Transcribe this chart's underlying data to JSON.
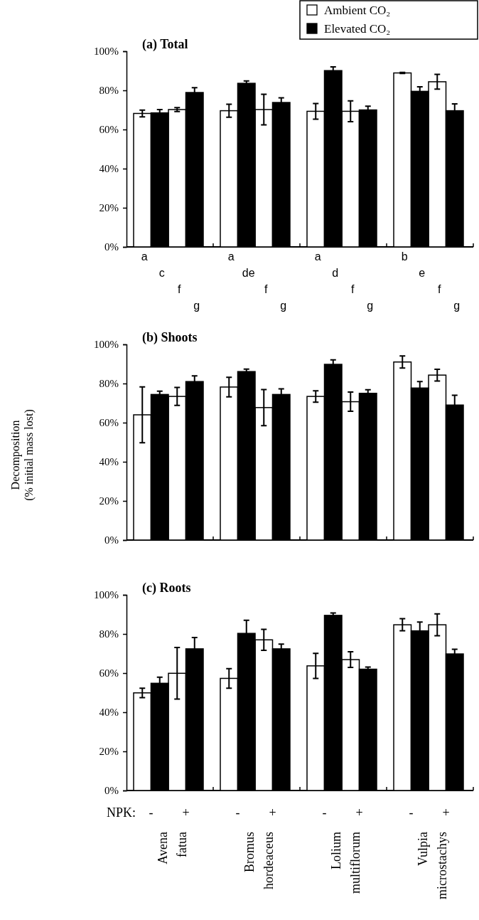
{
  "chart_data": [
    {
      "type": "bar",
      "title": "(a) Total",
      "categories": [
        null,
        null,
        null,
        null,
        null,
        null,
        null,
        null
      ],
      "tick_labels": "y",
      "legend": "top right",
      "ylim": [
        0,
        100
      ],
      "yticks": [
        {
          "value": 0,
          "label": "0%"
        },
        {
          "value": 20,
          "label": "20%"
        },
        {
          "value": 40,
          "label": "40%"
        },
        {
          "value": 60,
          "label": "60%"
        },
        {
          "value": 80,
          "label": "80%"
        },
        {
          "value": 100,
          "label": "100%"
        }
      ],
      "series": [
        {
          "name": "Ambient CO₂",
          "color": "#ffffff",
          "values": [
            68.2,
            70.2,
            69.6,
            70.2,
            69.3,
            69.3,
            88.9,
            84.4
          ],
          "errors": [
            1.7,
            1,
            3.3,
            7.8,
            4,
            5.3,
            0.3,
            3.8
          ]
        },
        {
          "name": "Elevated CO₂",
          "color": "#000000",
          "values": [
            68.5,
            78.9,
            83.6,
            73.8,
            90.1,
            70.0,
            79.5,
            69.6
          ],
          "errors": [
            1.7,
            2.5,
            1.2,
            2.4,
            1.9,
            1.9,
            2.3,
            3.5
          ]
        }
      ],
      "annotations": [
        "a",
        "c",
        "f",
        "g",
        "a",
        "de",
        "f",
        "g",
        "a",
        "d",
        "f",
        "g",
        "b",
        "e",
        "f",
        "g"
      ]
    },
    {
      "type": "bar",
      "title": "(b) Shoots",
      "ylabel": "Decomposition (% initial mass lost)",
      "categories": [
        null,
        null,
        null,
        null,
        null,
        null,
        null,
        null
      ],
      "tick_labels": "y",
      "ylim": [
        0,
        100
      ],
      "yticks": [
        {
          "value": 0,
          "label": "0%"
        },
        {
          "value": 20,
          "label": "20%"
        },
        {
          "value": 40,
          "label": "40%"
        },
        {
          "value": 60,
          "label": "60%"
        },
        {
          "value": 80,
          "label": "80%"
        },
        {
          "value": 100,
          "label": "100%"
        }
      ],
      "series": [
        {
          "color": "#ffffff",
          "values": [
            64.0,
            73.4,
            78.2,
            67.7,
            73.4,
            70.7,
            91.0,
            84.3
          ],
          "errors": [
            14.3,
            4.6,
            5,
            9.2,
            2.9,
            4.9,
            3.1,
            3
          ]
        },
        {
          "color": "#000000",
          "values": [
            74.4,
            81.0,
            86.1,
            74.4,
            89.8,
            75.0,
            77.7,
            69.0
          ],
          "errors": [
            1.7,
            2.9,
            1.3,
            2.9,
            2.3,
            1.8,
            3.3,
            5
          ]
        }
      ]
    },
    {
      "type": "bar",
      "title": "(c) Roots",
      "xlabel": "NPK:",
      "categories": [
        "-",
        "+",
        "-",
        "+",
        "-",
        "+",
        "-",
        "+"
      ],
      "ylim": [
        0,
        100
      ],
      "yticks": [
        {
          "value": 0,
          "label": "0%"
        },
        {
          "value": 20,
          "label": "20%"
        },
        {
          "value": 40,
          "label": "40%"
        },
        {
          "value": 60,
          "label": "60%"
        },
        {
          "value": 80,
          "label": "80%"
        },
        {
          "value": 100,
          "label": "100%"
        }
      ],
      "series": [
        {
          "color": "#ffffff",
          "values": [
            49.9,
            59.9,
            57.3,
            77.0,
            63.7,
            66.9,
            84.7,
            84.7
          ],
          "errors": [
            2.4,
            13.2,
            5,
            5.4,
            6.4,
            4,
            3.1,
            5.6
          ]
        },
        {
          "color": "#000000",
          "values": [
            54.8,
            72.4,
            80.3,
            72.4,
            89.5,
            62.0,
            81.6,
            69.8
          ],
          "errors": [
            3.1,
            5.8,
            6.7,
            2.4,
            1.2,
            1.1,
            4.5,
            2.4
          ]
        }
      ],
      "annotations": [
        "Avena fatua",
        "Bromus hordeaceus",
        "Lolium multiflorum",
        "Vulpia microstachys"
      ]
    }
  ]
}
